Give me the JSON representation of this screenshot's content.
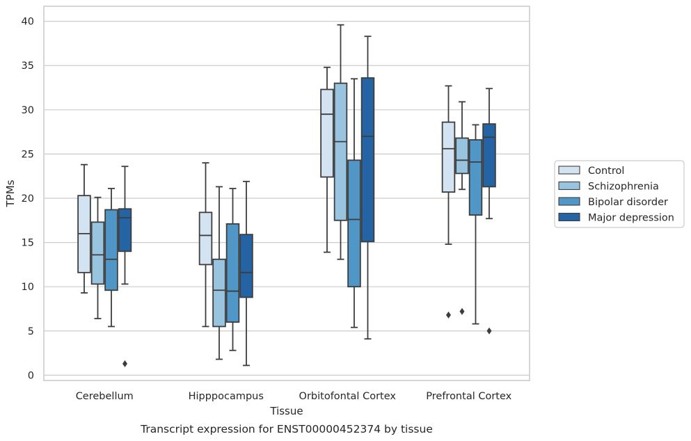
{
  "caption": "Transcript expression for ENST00000452374 by tissue",
  "colors": {
    "grid": "#cccccc",
    "frame": "#cccccc",
    "line": "#3d3d3d",
    "series": [
      "#d4e3f2",
      "#98c4df",
      "#5096c6",
      "#2463a4"
    ]
  },
  "chart_data": {
    "type": "box",
    "xlabel": "Tissue",
    "ylabel": "TPMs",
    "ylim": [
      -0.6,
      41.7
    ],
    "yticks": [
      0,
      5,
      10,
      15,
      20,
      25,
      30,
      35,
      40
    ],
    "grid": "horizontal",
    "legend_position": "right",
    "categories": [
      "Cerebellum",
      "Hipppocampus",
      "Orbitofontal Cortex",
      "Prefrontal Cortex"
    ],
    "series": [
      {
        "name": "Control",
        "boxes": [
          {
            "whislo": 9.3,
            "q1": 11.6,
            "med": 16.0,
            "q3": 20.3,
            "whishi": 23.8,
            "fliers": []
          },
          {
            "whislo": 5.5,
            "q1": 12.5,
            "med": 15.8,
            "q3": 18.4,
            "whishi": 24.0,
            "fliers": []
          },
          {
            "whislo": 13.9,
            "q1": 22.4,
            "med": 29.5,
            "q3": 32.3,
            "whishi": 34.8,
            "fliers": []
          },
          {
            "whislo": 14.8,
            "q1": 20.7,
            "med": 25.6,
            "q3": 28.6,
            "whishi": 32.7,
            "fliers": [
              6.8
            ]
          }
        ]
      },
      {
        "name": "Schizophrenia",
        "boxes": [
          {
            "whislo": 6.4,
            "q1": 10.3,
            "med": 13.6,
            "q3": 17.3,
            "whishi": 20.1,
            "fliers": []
          },
          {
            "whislo": 1.8,
            "q1": 5.5,
            "med": 9.6,
            "q3": 13.1,
            "whishi": 21.3,
            "fliers": []
          },
          {
            "whislo": 13.1,
            "q1": 17.5,
            "med": 26.4,
            "q3": 33.0,
            "whishi": 39.6,
            "fliers": []
          },
          {
            "whislo": 21.0,
            "q1": 22.8,
            "med": 24.3,
            "q3": 26.8,
            "whishi": 30.9,
            "fliers": [
              7.2
            ]
          }
        ]
      },
      {
        "name": "Bipolar disorder",
        "boxes": [
          {
            "whislo": 5.5,
            "q1": 9.6,
            "med": 13.1,
            "q3": 18.7,
            "whishi": 21.1,
            "fliers": []
          },
          {
            "whislo": 2.8,
            "q1": 6.0,
            "med": 9.5,
            "q3": 17.1,
            "whishi": 21.1,
            "fliers": []
          },
          {
            "whislo": 5.4,
            "q1": 10.0,
            "med": 17.6,
            "q3": 24.3,
            "whishi": 33.5,
            "fliers": []
          },
          {
            "whislo": 5.8,
            "q1": 18.1,
            "med": 24.1,
            "q3": 26.6,
            "whishi": 28.3,
            "fliers": []
          }
        ]
      },
      {
        "name": "Major depression",
        "boxes": [
          {
            "whislo": 10.3,
            "q1": 14.0,
            "med": 17.8,
            "q3": 18.8,
            "whishi": 23.6,
            "fliers": [
              1.3
            ]
          },
          {
            "whislo": 1.1,
            "q1": 8.8,
            "med": 11.6,
            "q3": 15.9,
            "whishi": 21.9,
            "fliers": []
          },
          {
            "whislo": 4.1,
            "q1": 15.1,
            "med": 27.0,
            "q3": 33.6,
            "whishi": 38.3,
            "fliers": []
          },
          {
            "whislo": 17.7,
            "q1": 21.3,
            "med": 26.9,
            "q3": 28.4,
            "whishi": 32.4,
            "fliers": [
              5.0
            ]
          }
        ]
      }
    ]
  }
}
